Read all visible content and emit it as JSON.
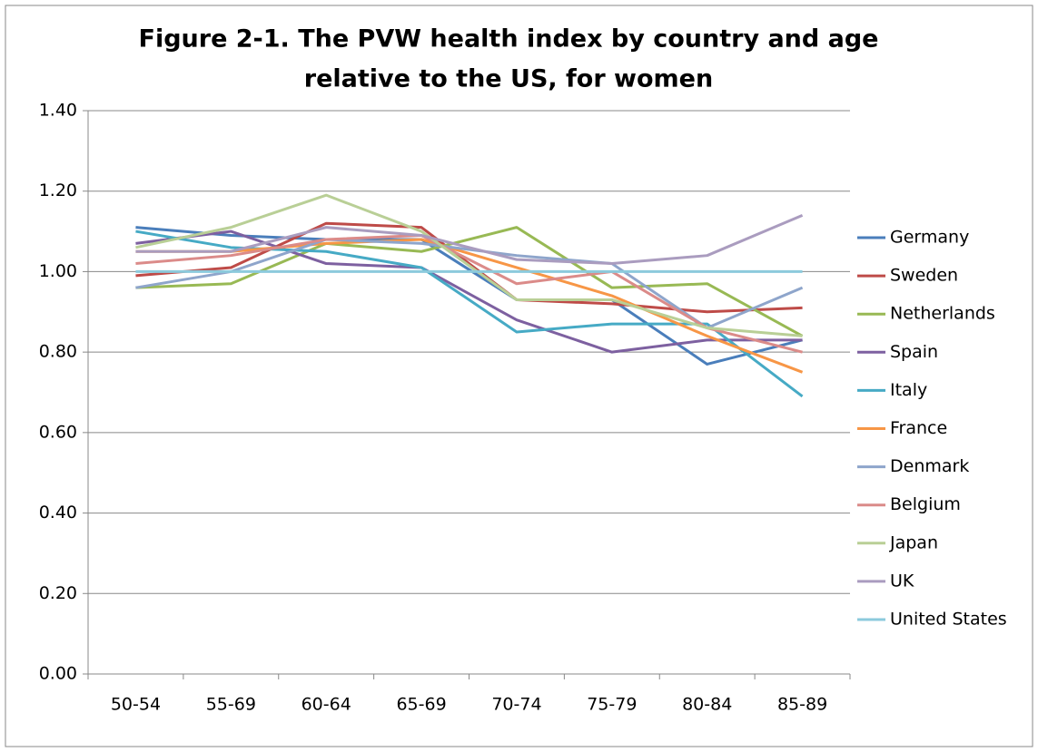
{
  "chart_data": {
    "type": "line",
    "title": [
      "Figure 2-1. The PVW health index by country and age",
      "relative to the US,  for women"
    ],
    "categories": [
      "50-54",
      "55-69",
      "60-64",
      "65-69",
      "70-74",
      "75-79",
      "80-84",
      "85-89"
    ],
    "series": [
      {
        "name": "Germany",
        "color": "#4a7ebb",
        "values": [
          1.11,
          1.09,
          1.08,
          1.08,
          0.93,
          0.93,
          0.77,
          0.83
        ]
      },
      {
        "name": "Sweden",
        "color": "#be4b48",
        "values": [
          0.99,
          1.01,
          1.12,
          1.11,
          0.93,
          0.92,
          0.9,
          0.91
        ]
      },
      {
        "name": "Netherlands",
        "color": "#98b954",
        "values": [
          0.96,
          0.97,
          1.07,
          1.05,
          1.11,
          0.96,
          0.97,
          0.84
        ]
      },
      {
        "name": "Spain",
        "color": "#7d60a0",
        "values": [
          1.07,
          1.1,
          1.02,
          1.01,
          0.88,
          0.8,
          0.83,
          0.83
        ]
      },
      {
        "name": "Italy",
        "color": "#46aac5",
        "values": [
          1.1,
          1.06,
          1.05,
          1.01,
          0.85,
          0.87,
          0.87,
          0.69
        ]
      },
      {
        "name": "France",
        "color": "#f79646",
        "values": [
          1.05,
          1.05,
          1.07,
          1.08,
          1.01,
          0.94,
          0.84,
          0.75
        ]
      },
      {
        "name": "Denmark",
        "color": "#8ea5cb",
        "values": [
          0.96,
          1.0,
          1.08,
          1.07,
          1.04,
          1.02,
          0.86,
          0.96
        ]
      },
      {
        "name": "Belgium",
        "color": "#db8b89",
        "values": [
          1.02,
          1.04,
          1.08,
          1.09,
          0.97,
          1.0,
          0.86,
          0.8
        ]
      },
      {
        "name": "Japan",
        "color": "#b9cf96",
        "values": [
          1.06,
          1.11,
          1.19,
          1.1,
          0.93,
          0.93,
          0.86,
          0.84
        ]
      },
      {
        "name": "UK",
        "color": "#aa9cbf",
        "values": [
          1.05,
          1.05,
          1.11,
          1.09,
          1.03,
          1.02,
          1.04,
          1.14
        ]
      },
      {
        "name": "United States",
        "color": "#8ccadc",
        "values": [
          1.0,
          1.0,
          1.0,
          1.0,
          1.0,
          1.0,
          1.0,
          1.0
        ]
      }
    ],
    "ylim": [
      0,
      1.4
    ],
    "yticks": [
      {
        "value": 0,
        "label": "0.00"
      },
      {
        "value": 0.2,
        "label": "0.20"
      },
      {
        "value": 0.4,
        "label": "0.40"
      },
      {
        "value": 0.6,
        "label": "0.60"
      },
      {
        "value": 0.8,
        "label": "0.80"
      },
      {
        "value": 1,
        "label": "1.00"
      },
      {
        "value": 1.2,
        "label": "1.20"
      },
      {
        "value": 1.4,
        "label": "1.40"
      }
    ],
    "grid": true,
    "legend": "right"
  }
}
